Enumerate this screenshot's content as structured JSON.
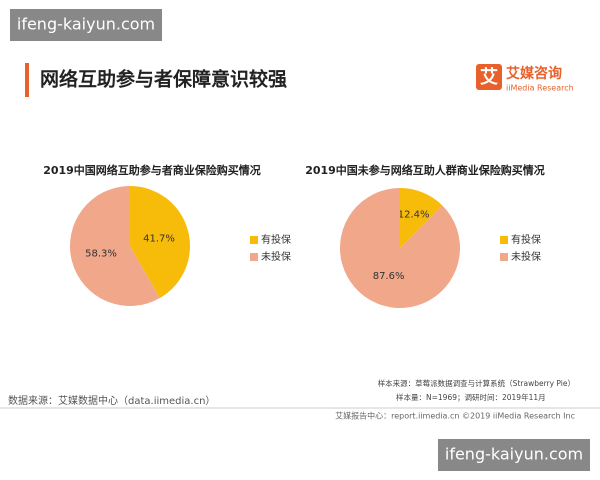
{
  "header": {
    "title": "网络互助参与者保障意识较强",
    "logo_char": "艾",
    "brand": "艾媒咨询",
    "brand_en": "iiMedia Research"
  },
  "chart_data": [
    {
      "type": "pie",
      "title": "2019中国网络互助参与者商业保险购买情况",
      "categories": [
        "有投保",
        "未投保"
      ],
      "values": [
        41.7,
        58.3
      ],
      "value_labels": [
        "41.7%",
        "58.3%"
      ],
      "colors": [
        "#f7bb0a",
        "#f0a78a"
      ]
    },
    {
      "type": "pie",
      "title": "2019中国未参与网络互助人群商业保险购买情况",
      "categories": [
        "有投保",
        "未投保"
      ],
      "values": [
        12.4,
        87.6
      ],
      "value_labels": [
        "12.4%",
        "87.6%"
      ],
      "colors": [
        "#f7bb0a",
        "#f0a78a"
      ]
    }
  ],
  "footer": {
    "source": "数据来源：艾媒数据中心（data.iimedia.cn）",
    "sample_source": "样本来源：草莓派数据调查与计算系统（Strawberry Pie）",
    "sample_size": "样本量：N=1969；调研时间：2019年11月",
    "report": "艾媒报告中心：report.iimedia.cn  ©2019  iiMedia Research  Inc"
  },
  "watermarks": [
    "ifeng-kaiyun.com",
    "ifeng-kaiyun.com"
  ]
}
